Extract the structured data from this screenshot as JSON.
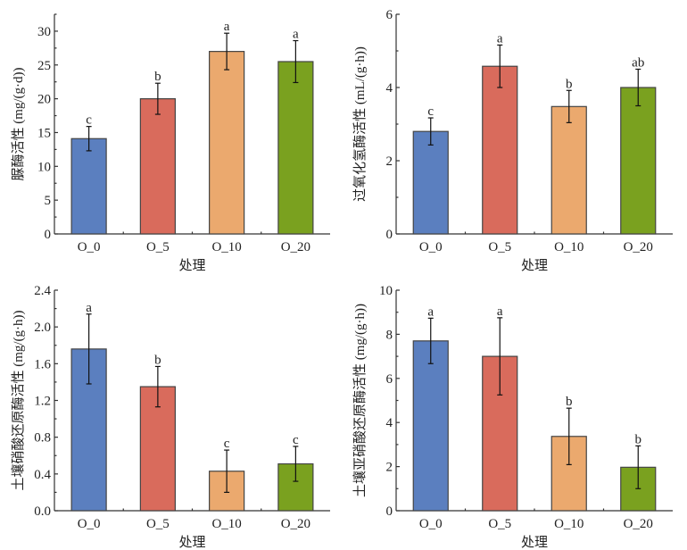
{
  "figure": {
    "colors": {
      "O_0": "#5b7fbf",
      "O_5": "#d96b5c",
      "O_10": "#eba96e",
      "O_20": "#7aa11f"
    }
  },
  "chart_data": [
    {
      "type": "bar",
      "position": "top-left",
      "title": "",
      "xlabel": "处理",
      "ylabel": "脲酶活性 (mg/(g·d))",
      "categories": [
        "O_0",
        "O_5",
        "O_10",
        "O_20"
      ],
      "values": [
        14.1,
        20.0,
        27.0,
        25.5
      ],
      "errors": [
        1.8,
        2.3,
        2.7,
        3.1
      ],
      "significance": [
        "c",
        "b",
        "a",
        "a"
      ],
      "ylim": [
        0,
        32.5
      ],
      "yticks": [
        0,
        5,
        10,
        15,
        20,
        25,
        30
      ],
      "ytick_labels": [
        "0",
        "5",
        "10",
        "15",
        "20",
        "25",
        "30"
      ],
      "yminor": 2.5,
      "grid": false
    },
    {
      "type": "bar",
      "position": "top-right",
      "title": "",
      "xlabel": "处理",
      "ylabel": "过氧化氢酶活性 (mL/(g·h))",
      "categories": [
        "O_0",
        "O_5",
        "O_10",
        "O_20"
      ],
      "values": [
        2.8,
        4.58,
        3.48,
        4.0
      ],
      "errors": [
        0.37,
        0.58,
        0.44,
        0.5
      ],
      "significance": [
        "c",
        "a",
        "b",
        "ab"
      ],
      "ylim": [
        0,
        6
      ],
      "yticks": [
        0,
        2,
        4,
        6
      ],
      "ytick_labels": [
        "0",
        "2",
        "4",
        "6"
      ],
      "yminor": 1,
      "grid": false
    },
    {
      "type": "bar",
      "position": "bottom-left",
      "title": "",
      "xlabel": "处理",
      "ylabel": "土壤硝酸还原酶活性 (mg/(g·h))",
      "categories": [
        "O_0",
        "O_5",
        "O_10",
        "O_20"
      ],
      "values": [
        1.76,
        1.35,
        0.43,
        0.51
      ],
      "errors": [
        0.38,
        0.22,
        0.23,
        0.19
      ],
      "significance": [
        "a",
        "b",
        "c",
        "c"
      ],
      "ylim": [
        0,
        2.4
      ],
      "yticks": [
        0,
        0.4,
        0.8,
        1.2,
        1.6,
        2.0,
        2.4
      ],
      "ytick_labels": [
        "0.0",
        "0.4",
        "0.8",
        "1.2",
        "1.6",
        "2.0",
        "2.4"
      ],
      "yminor": 0.2,
      "grid": false
    },
    {
      "type": "bar",
      "position": "bottom-right",
      "title": "",
      "xlabel": "处理",
      "ylabel": "土壤亚硝酸还原酶活性 (mg/(g·h))",
      "categories": [
        "O_0",
        "O_5",
        "O_10",
        "O_20"
      ],
      "values": [
        7.7,
        7.0,
        3.37,
        1.97
      ],
      "errors": [
        1.03,
        1.75,
        1.28,
        0.97
      ],
      "significance": [
        "a",
        "a",
        "b",
        "b"
      ],
      "ylim": [
        0,
        10
      ],
      "yticks": [
        0,
        2,
        4,
        6,
        8,
        10
      ],
      "ytick_labels": [
        "0",
        "2",
        "4",
        "6",
        "8",
        "10"
      ],
      "yminor": 1,
      "grid": false
    }
  ]
}
